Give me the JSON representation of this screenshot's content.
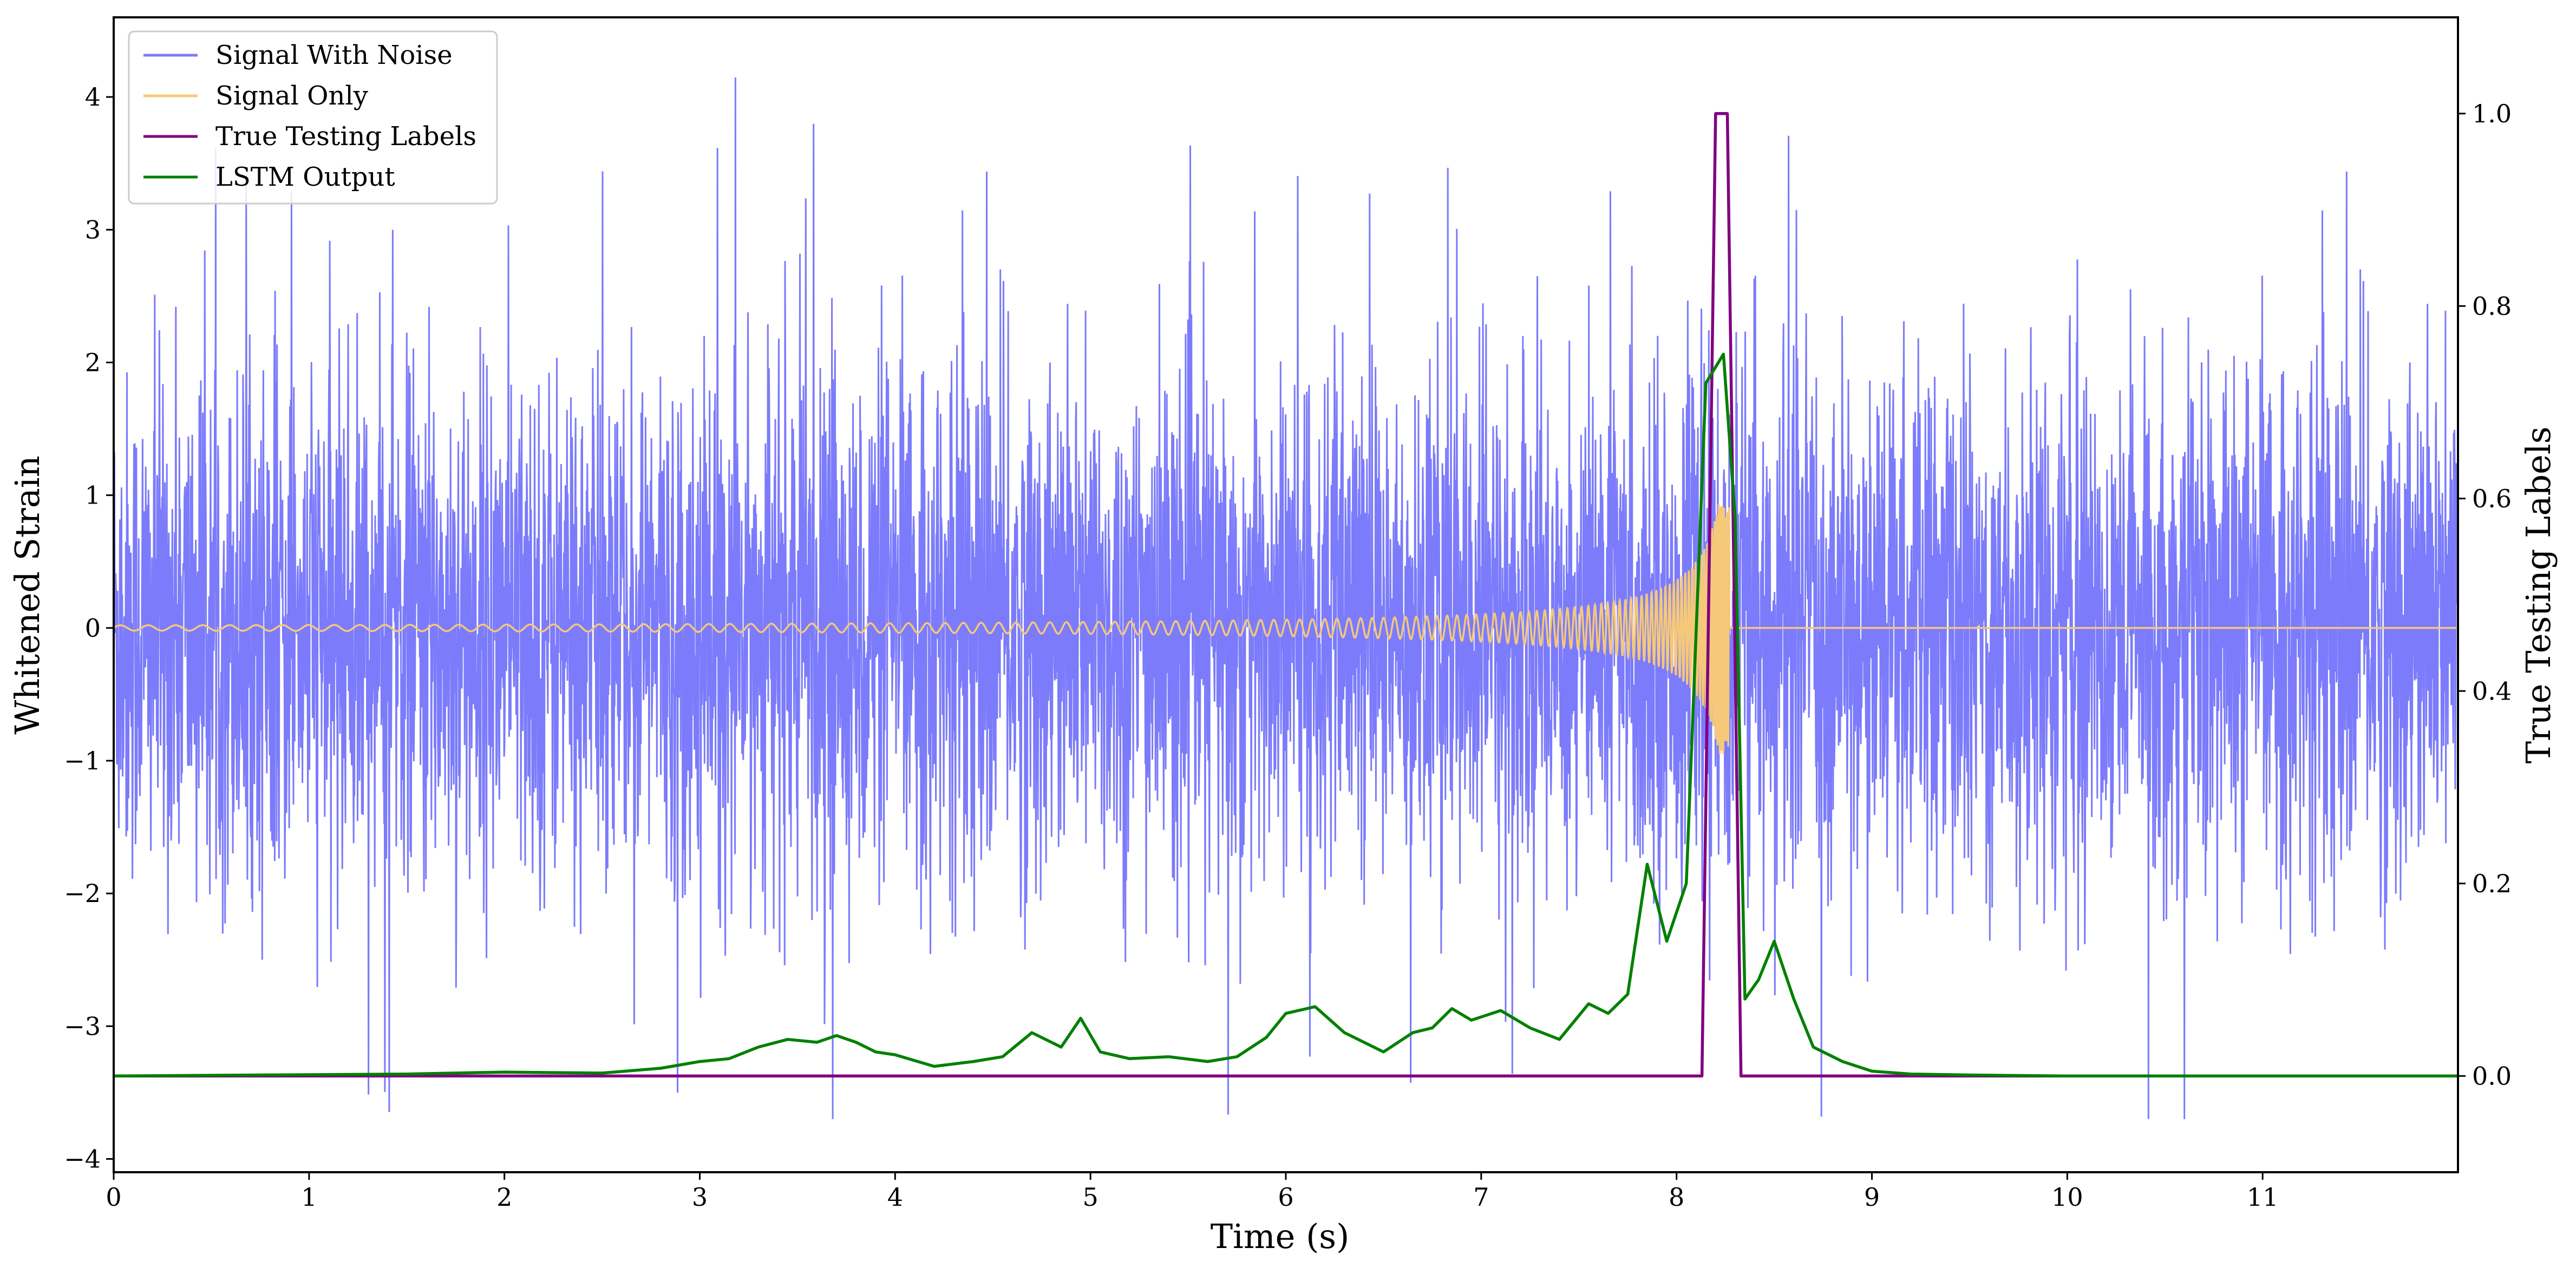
{
  "chart_data": {
    "type": "line",
    "xlabel": "Time (s)",
    "ylabel": "Whitened Strain",
    "y2label": "True Testing Labels",
    "xlim": [
      0,
      12
    ],
    "ylim": [
      -4.1,
      4.6
    ],
    "y2lim": [
      -0.1,
      1.1
    ],
    "xticks": [
      0,
      1,
      2,
      3,
      4,
      5,
      6,
      7,
      8,
      9,
      10,
      11
    ],
    "xtick_labels": [
      "0",
      "1",
      "2",
      "3",
      "4",
      "5",
      "6",
      "7",
      "8",
      "9",
      "10",
      "11"
    ],
    "yticks": [
      -4,
      -3,
      -2,
      -1,
      0,
      1,
      2,
      3,
      4
    ],
    "ytick_labels": [
      "−4",
      "−3",
      "−2",
      "−1",
      "0",
      "1",
      "2",
      "3",
      "4"
    ],
    "y2ticks": [
      0.0,
      0.2,
      0.4,
      0.6,
      0.8,
      1.0
    ],
    "y2tick_labels": [
      "0.0",
      "0.2",
      "0.4",
      "0.6",
      "0.8",
      "1.0"
    ],
    "grid": false,
    "legend_position": "upper-left",
    "series": [
      {
        "name": "Signal With Noise",
        "axis": "left",
        "color": "#7b7bfb",
        "style": "dense noise, roughly within ±2.8 with spikes to about ±4.2",
        "y_range": [
          -3.7,
          4.25
        ]
      },
      {
        "name": "Signal Only",
        "axis": "left",
        "color": "#f5c87a",
        "style": "chirp waveform, amplitude growing until merger, zero after",
        "x_range": [
          0,
          12
        ],
        "merger_time": 8.27,
        "peak_amplitude": 0.95
      },
      {
        "name": "True Testing Labels",
        "axis": "right",
        "color": "#800080",
        "x": [
          0,
          8.13,
          8.2,
          8.26,
          8.33,
          12
        ],
        "y": [
          0,
          0,
          1,
          1,
          0,
          0
        ]
      },
      {
        "name": "LSTM Output",
        "axis": "right",
        "color": "#008000",
        "x": [
          0,
          1.5,
          2.0,
          2.5,
          2.8,
          3.0,
          3.15,
          3.3,
          3.45,
          3.6,
          3.7,
          3.8,
          3.9,
          4.0,
          4.2,
          4.4,
          4.55,
          4.7,
          4.85,
          4.95,
          5.05,
          5.2,
          5.4,
          5.6,
          5.75,
          5.9,
          6.0,
          6.15,
          6.3,
          6.5,
          6.65,
          6.75,
          6.85,
          6.95,
          7.1,
          7.25,
          7.4,
          7.55,
          7.65,
          7.75,
          7.85,
          7.95,
          8.05,
          8.15,
          8.24,
          8.3,
          8.35,
          8.42,
          8.5,
          8.6,
          8.7,
          8.85,
          9.0,
          9.2,
          9.5,
          10.0,
          12.0
        ],
        "y": [
          0.0,
          0.002,
          0.004,
          0.003,
          0.008,
          0.015,
          0.018,
          0.03,
          0.038,
          0.035,
          0.042,
          0.035,
          0.025,
          0.022,
          0.01,
          0.015,
          0.02,
          0.045,
          0.03,
          0.06,
          0.025,
          0.018,
          0.02,
          0.015,
          0.02,
          0.04,
          0.065,
          0.072,
          0.045,
          0.025,
          0.045,
          0.05,
          0.07,
          0.058,
          0.068,
          0.05,
          0.038,
          0.075,
          0.065,
          0.085,
          0.22,
          0.14,
          0.2,
          0.72,
          0.75,
          0.58,
          0.08,
          0.1,
          0.14,
          0.08,
          0.03,
          0.015,
          0.005,
          0.002,
          0.001,
          0.0,
          0.0
        ]
      }
    ]
  }
}
